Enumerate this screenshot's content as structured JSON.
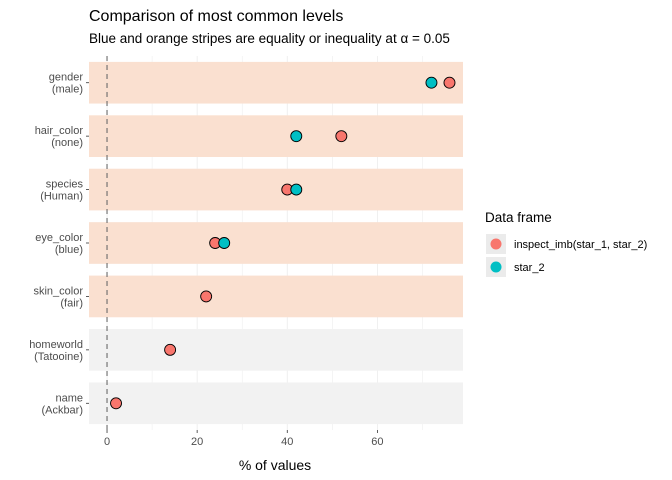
{
  "chart_data": {
    "type": "scatter",
    "title": "Comparison of most common levels",
    "subtitle": "Blue and orange stripes are equality or inequality at α = 0.05",
    "xlabel": "% of values",
    "ylabel": "",
    "xlim": [
      -4,
      79
    ],
    "x_ticks": [
      0,
      20,
      40,
      60
    ],
    "reference_line_x": 0,
    "grid": true,
    "legend": {
      "title": "Data frame",
      "position": "right",
      "entries": [
        {
          "name": "inspect_imb(star_1, star_2)",
          "color": "#F8766D"
        },
        {
          "name": "star_2",
          "color": "#00BFC4"
        }
      ]
    },
    "stripe_colors": {
      "orange": "#FAE0D0",
      "grey": "#F2F2F2"
    },
    "rows": [
      {
        "col_name": "gender",
        "level": "(male)",
        "stripe": "orange",
        "inspect_imb(star_1, star_2)": 76,
        "star_2": 72
      },
      {
        "col_name": "hair_color",
        "level": "(none)",
        "stripe": "orange",
        "inspect_imb(star_1, star_2)": 52,
        "star_2": 42
      },
      {
        "col_name": "species",
        "level": "(Human)",
        "stripe": "orange",
        "inspect_imb(star_1, star_2)": 40,
        "star_2": 42
      },
      {
        "col_name": "eye_color",
        "level": "(blue)",
        "stripe": "orange",
        "inspect_imb(star_1, star_2)": 24,
        "star_2": 26
      },
      {
        "col_name": "skin_color",
        "level": "(fair)",
        "stripe": "orange",
        "inspect_imb(star_1, star_2)": 22,
        "star_2": null
      },
      {
        "col_name": "homeworld",
        "level": "(Tatooine)",
        "stripe": "grey",
        "inspect_imb(star_1, star_2)": 14,
        "star_2": null
      },
      {
        "col_name": "name",
        "level": "(Ackbar)",
        "stripe": "grey",
        "inspect_imb(star_1, star_2)": 2,
        "star_2": null
      }
    ]
  }
}
